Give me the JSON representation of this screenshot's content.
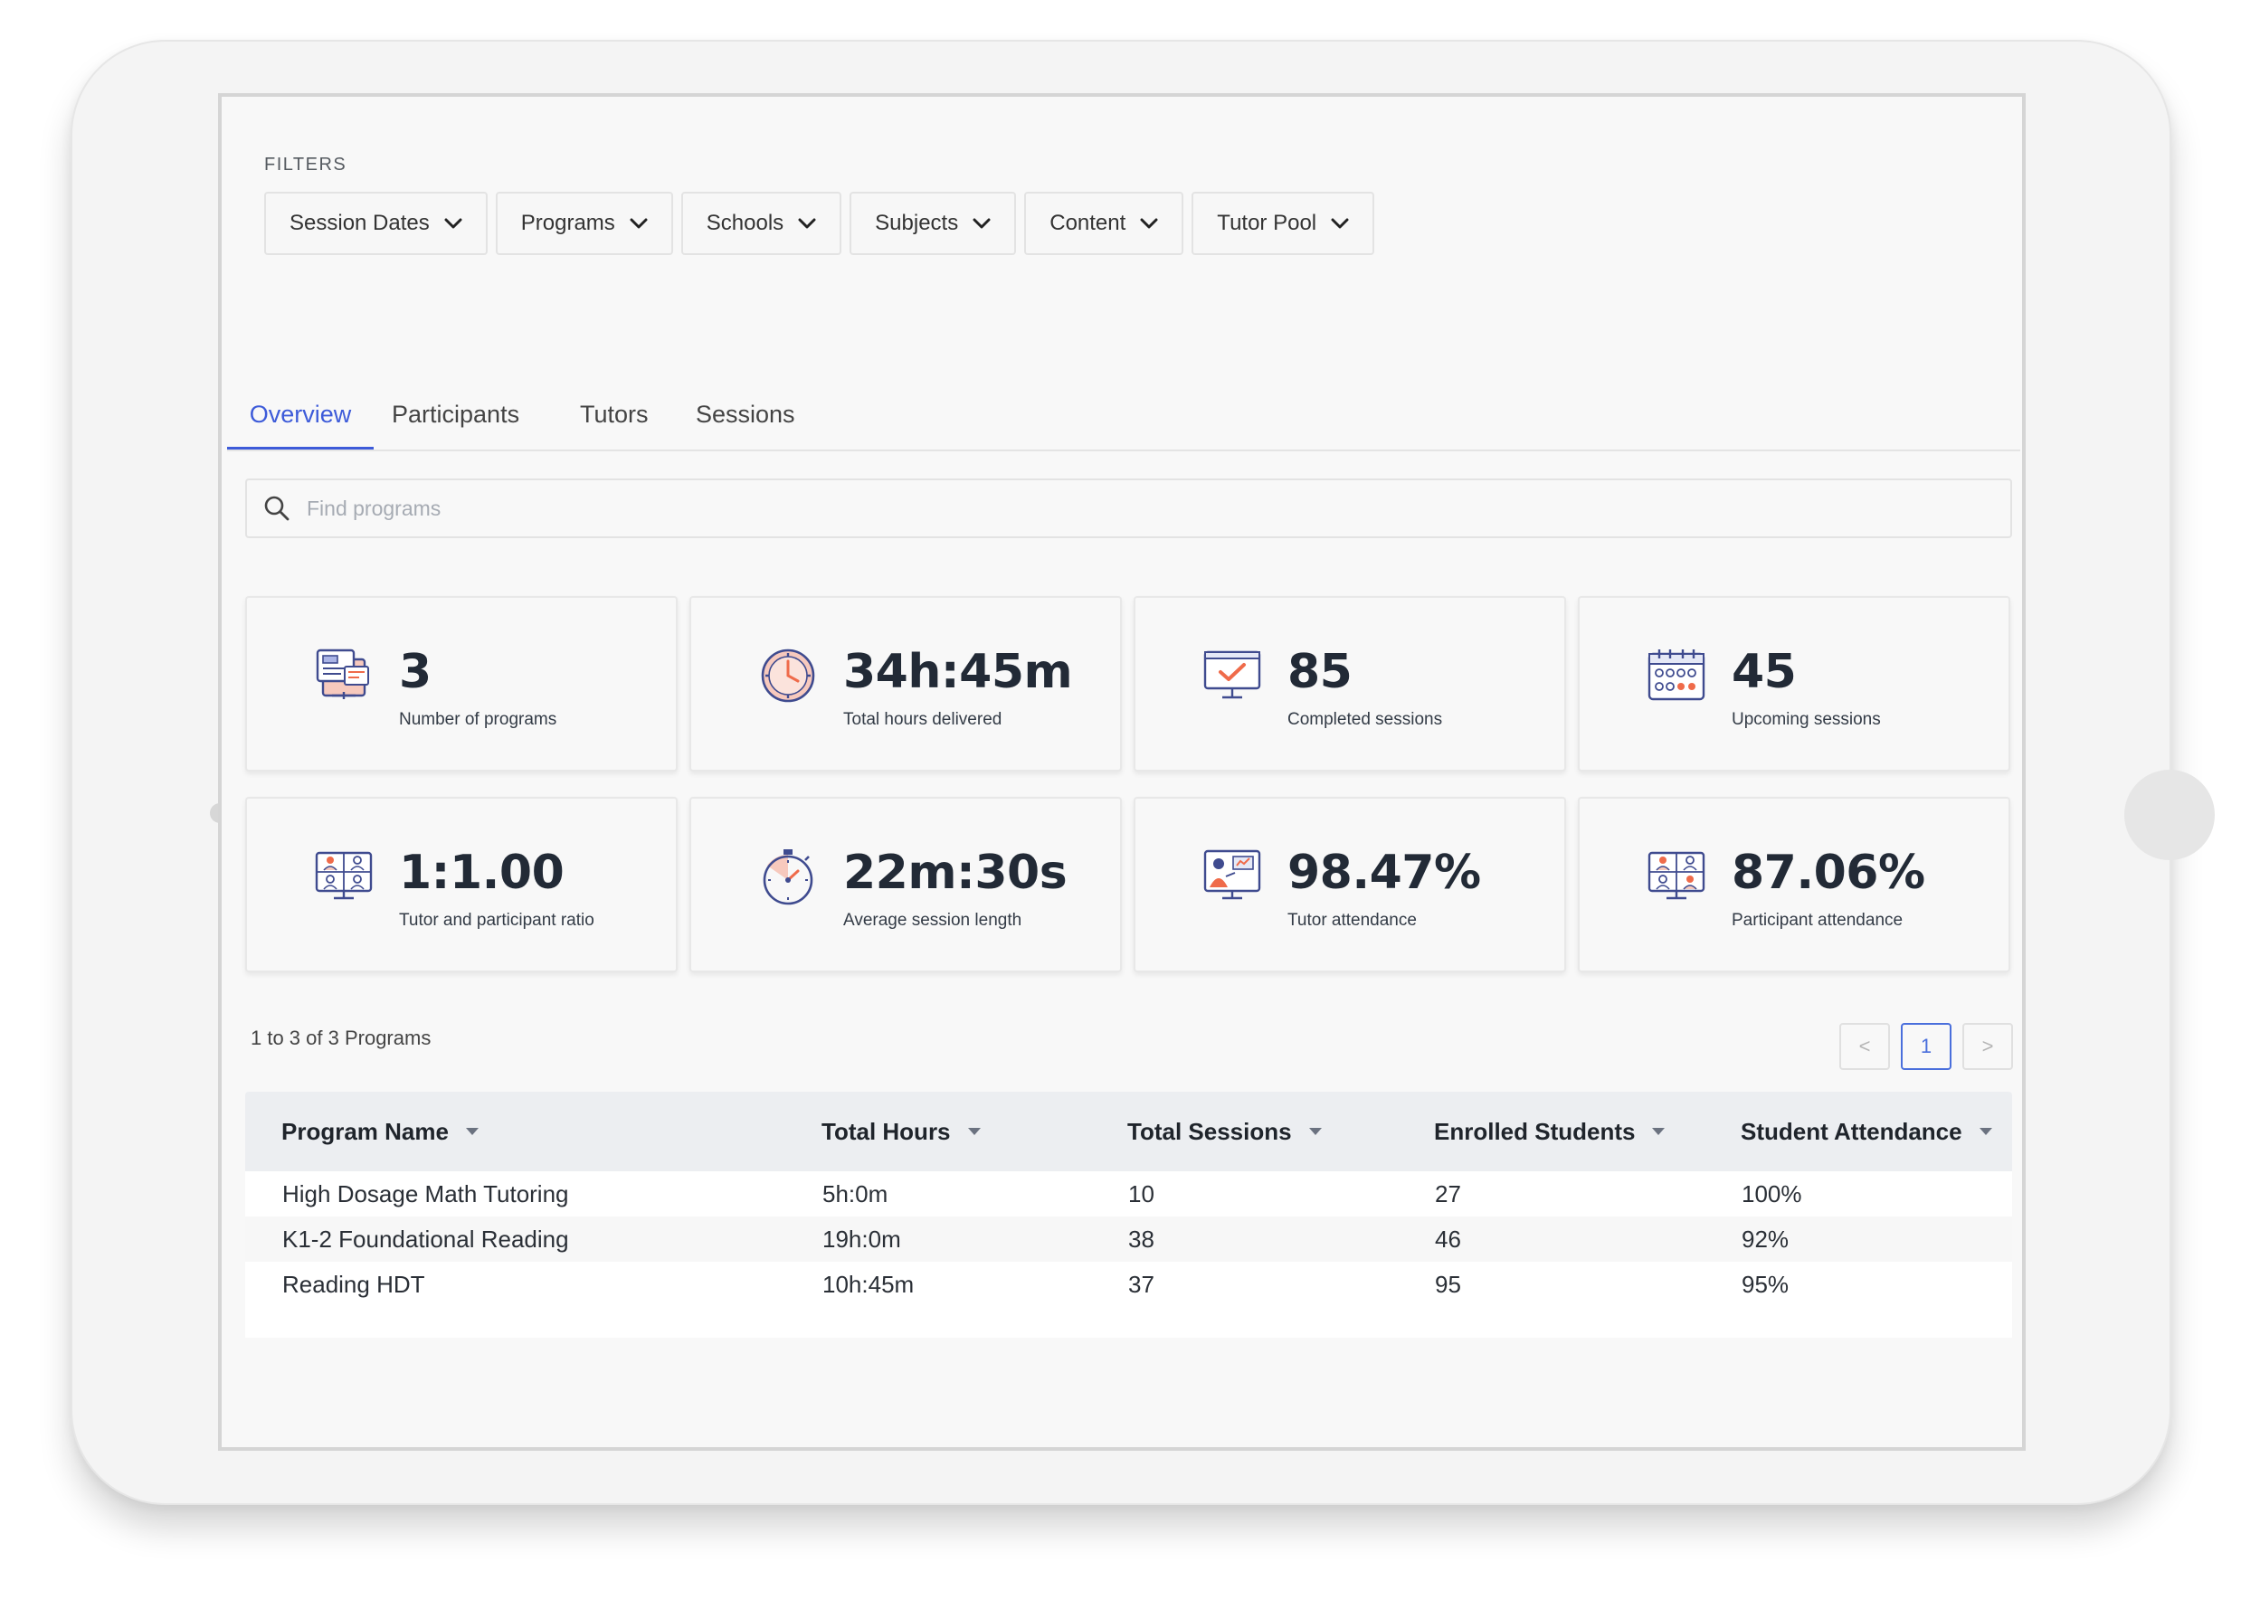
{
  "filters": {
    "label": "FILTERS",
    "items": [
      {
        "label": "Session Dates"
      },
      {
        "label": "Programs"
      },
      {
        "label": "Schools"
      },
      {
        "label": "Subjects"
      },
      {
        "label": "Content"
      },
      {
        "label": "Tutor Pool"
      }
    ]
  },
  "tabs": [
    {
      "label": "Overview",
      "active": true
    },
    {
      "label": "Participants",
      "active": false
    },
    {
      "label": "Tutors",
      "active": false
    },
    {
      "label": "Sessions",
      "active": false
    }
  ],
  "search": {
    "placeholder": "Find programs",
    "value": ""
  },
  "stats": [
    {
      "value": "3",
      "label": "Number of programs",
      "icon": "programs-icon"
    },
    {
      "value": "34h:45m",
      "label": "Total hours delivered",
      "icon": "clock-icon"
    },
    {
      "value": "85",
      "label": "Completed sessions",
      "icon": "completed-sessions-icon"
    },
    {
      "value": "45",
      "label": "Upcoming sessions",
      "icon": "calendar-icon"
    },
    {
      "value": "1:1.00",
      "label": "Tutor and participant ratio",
      "icon": "ratio-icon"
    },
    {
      "value": "22m:30s",
      "label": "Average session length",
      "icon": "stopwatch-icon"
    },
    {
      "value": "98.47%",
      "label": "Tutor attendance",
      "icon": "tutor-attendance-icon"
    },
    {
      "value": "87.06%",
      "label": "Participant attendance",
      "icon": "participant-attendance-icon"
    }
  ],
  "table": {
    "count_text": "1 to 3 of 3 Programs",
    "pagination": {
      "prev": "<",
      "current": "1",
      "next": ">"
    },
    "columns": [
      "Program Name",
      "Total Hours",
      "Total Sessions",
      "Enrolled Students",
      "Student Attendance"
    ],
    "rows": [
      [
        "High Dosage Math Tutoring",
        "5h:0m",
        "10",
        "27",
        "100%"
      ],
      [
        "K1-2 Foundational Reading",
        "19h:0m",
        "38",
        "46",
        "92%"
      ],
      [
        "Reading HDT",
        "10h:45m",
        "37",
        "95",
        "95%"
      ]
    ]
  },
  "colors": {
    "accent": "#3d5bd9",
    "icon_line": "#3f4b8f",
    "icon_highlight": "#ef6b4a",
    "icon_fill": "#f7c9bd"
  }
}
